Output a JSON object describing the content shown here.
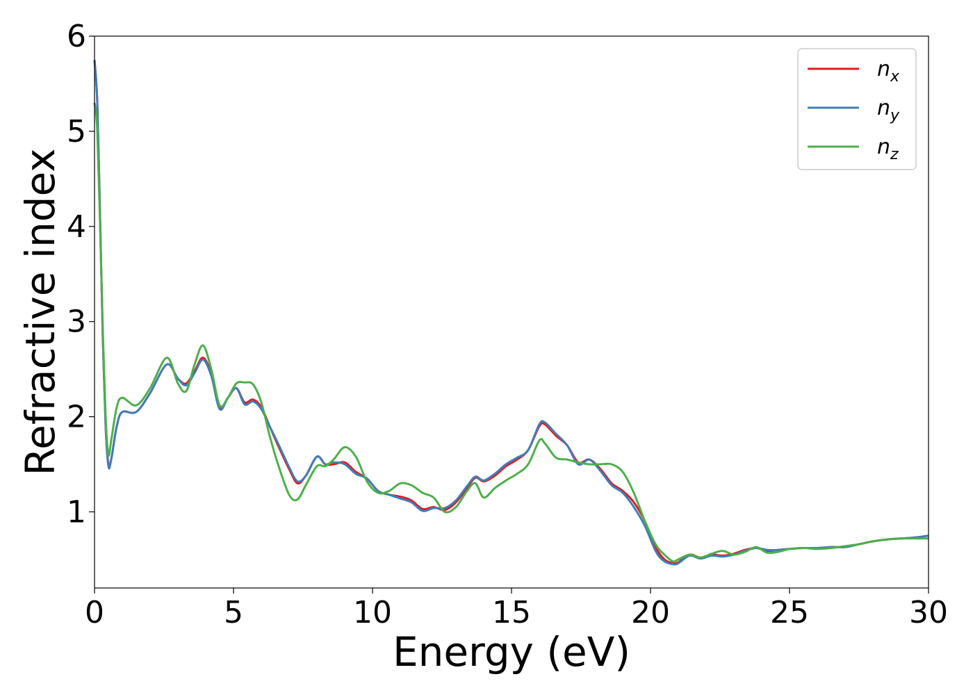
{
  "chart_data": {
    "type": "line",
    "title": "",
    "xlabel": "Energy (eV)",
    "ylabel": "Refractive index",
    "xlim": [
      0,
      30
    ],
    "ylim": [
      0.2,
      6.0
    ],
    "x_ticks": [
      "0",
      "5",
      "10",
      "15",
      "20",
      "25",
      "30"
    ],
    "y_ticks": [
      "1",
      "2",
      "3",
      "4",
      "5",
      "6"
    ],
    "grid": false,
    "legend_placement": "top-right",
    "series": [
      {
        "name": "n",
        "sub": "x",
        "color": "#e41a1c",
        "x": [
          0,
          0.1,
          0.2,
          0.3,
          0.4,
          0.5,
          0.6,
          0.8,
          1.0,
          1.5,
          2.0,
          2.6,
          3.0,
          3.3,
          3.6,
          3.9,
          4.2,
          4.5,
          4.8,
          5.1,
          5.4,
          5.7,
          6.0,
          6.3,
          6.6,
          7.0,
          7.3,
          7.6,
          8.0,
          8.3,
          8.6,
          9.0,
          9.4,
          9.8,
          10.2,
          10.6,
          11.0,
          11.4,
          11.8,
          12.2,
          12.6,
          13.0,
          13.4,
          13.7,
          14.0,
          14.4,
          14.8,
          15.2,
          15.6,
          16.0,
          16.2,
          16.6,
          17.0,
          17.4,
          17.8,
          18.2,
          18.6,
          19.0,
          19.4,
          19.8,
          20.2,
          20.5,
          20.8,
          21.0,
          21.4,
          21.8,
          22.2,
          22.6,
          23.0,
          23.4,
          23.8,
          24.2,
          24.6,
          25.0,
          25.5,
          26.0,
          26.5,
          27.0,
          27.5,
          28.0,
          28.5,
          29.0,
          29.5,
          30.0
        ],
        "y": [
          5.75,
          5.3,
          4.1,
          2.8,
          1.9,
          1.5,
          1.55,
          1.9,
          2.05,
          2.05,
          2.25,
          2.55,
          2.4,
          2.35,
          2.48,
          2.62,
          2.45,
          2.1,
          2.2,
          2.3,
          2.15,
          2.18,
          2.1,
          1.9,
          1.7,
          1.45,
          1.3,
          1.38,
          1.58,
          1.5,
          1.5,
          1.52,
          1.42,
          1.35,
          1.22,
          1.18,
          1.16,
          1.12,
          1.03,
          1.05,
          1.02,
          1.1,
          1.25,
          1.36,
          1.32,
          1.38,
          1.48,
          1.55,
          1.65,
          1.9,
          1.92,
          1.8,
          1.7,
          1.52,
          1.55,
          1.45,
          1.3,
          1.22,
          1.1,
          0.9,
          0.62,
          0.5,
          0.46,
          0.47,
          0.55,
          0.52,
          0.55,
          0.54,
          0.56,
          0.6,
          0.62,
          0.59,
          0.6,
          0.61,
          0.62,
          0.62,
          0.63,
          0.63,
          0.66,
          0.69,
          0.71,
          0.72,
          0.73,
          0.75
        ]
      },
      {
        "name": "n",
        "sub": "y",
        "color": "#3f7db8",
        "x": [
          0,
          0.1,
          0.2,
          0.3,
          0.4,
          0.5,
          0.6,
          0.8,
          1.0,
          1.5,
          2.0,
          2.6,
          3.0,
          3.3,
          3.6,
          3.9,
          4.2,
          4.5,
          4.8,
          5.1,
          5.4,
          5.7,
          6.0,
          6.3,
          6.6,
          7.0,
          7.3,
          7.6,
          8.0,
          8.3,
          8.6,
          9.0,
          9.4,
          9.8,
          10.2,
          10.6,
          11.0,
          11.4,
          11.8,
          12.2,
          12.6,
          13.0,
          13.4,
          13.7,
          14.0,
          14.4,
          14.8,
          15.2,
          15.6,
          16.0,
          16.2,
          16.6,
          17.0,
          17.4,
          17.8,
          18.2,
          18.6,
          19.0,
          19.4,
          19.8,
          20.2,
          20.5,
          20.8,
          21.0,
          21.4,
          21.8,
          22.2,
          22.6,
          23.0,
          23.4,
          23.8,
          24.2,
          24.6,
          25.0,
          25.5,
          26.0,
          26.5,
          27.0,
          27.5,
          28.0,
          28.5,
          29.0,
          29.5,
          30.0
        ],
        "y": [
          5.75,
          5.3,
          4.1,
          2.8,
          1.9,
          1.48,
          1.55,
          1.9,
          2.05,
          2.05,
          2.25,
          2.55,
          2.4,
          2.33,
          2.46,
          2.6,
          2.43,
          2.08,
          2.2,
          2.3,
          2.13,
          2.16,
          2.08,
          1.9,
          1.72,
          1.47,
          1.32,
          1.38,
          1.58,
          1.5,
          1.52,
          1.5,
          1.4,
          1.35,
          1.22,
          1.18,
          1.14,
          1.1,
          1.01,
          1.04,
          1.04,
          1.12,
          1.27,
          1.37,
          1.33,
          1.4,
          1.5,
          1.57,
          1.65,
          1.92,
          1.94,
          1.82,
          1.7,
          1.5,
          1.55,
          1.43,
          1.28,
          1.2,
          1.05,
          0.85,
          0.58,
          0.48,
          0.45,
          0.46,
          0.54,
          0.51,
          0.54,
          0.53,
          0.55,
          0.59,
          0.62,
          0.6,
          0.6,
          0.61,
          0.62,
          0.62,
          0.63,
          0.63,
          0.66,
          0.69,
          0.71,
          0.72,
          0.73,
          0.75
        ]
      },
      {
        "name": "n",
        "sub": "z",
        "color": "#4daf4a",
        "x": [
          0,
          0.1,
          0.2,
          0.3,
          0.4,
          0.5,
          0.6,
          0.8,
          1.0,
          1.5,
          2.0,
          2.6,
          3.0,
          3.3,
          3.6,
          3.9,
          4.2,
          4.5,
          4.8,
          5.1,
          5.4,
          5.7,
          6.0,
          6.3,
          6.6,
          7.0,
          7.3,
          7.6,
          8.0,
          8.3,
          8.6,
          9.0,
          9.4,
          9.8,
          10.2,
          10.6,
          11.0,
          11.4,
          11.8,
          12.2,
          12.6,
          13.0,
          13.4,
          13.7,
          14.0,
          14.4,
          14.8,
          15.2,
          15.6,
          16.0,
          16.2,
          16.6,
          17.0,
          17.4,
          17.8,
          18.2,
          18.6,
          19.0,
          19.4,
          19.8,
          20.2,
          20.5,
          20.8,
          21.0,
          21.4,
          21.8,
          22.2,
          22.6,
          23.0,
          23.4,
          23.8,
          24.2,
          24.6,
          25.0,
          25.5,
          26.0,
          26.5,
          27.0,
          27.5,
          28.0,
          28.5,
          29.0,
          29.5,
          30.0
        ],
        "y": [
          5.3,
          5.0,
          4.0,
          2.9,
          2.0,
          1.6,
          1.75,
          2.1,
          2.2,
          2.12,
          2.3,
          2.62,
          2.35,
          2.27,
          2.55,
          2.75,
          2.5,
          2.12,
          2.2,
          2.35,
          2.36,
          2.34,
          2.15,
          1.8,
          1.5,
          1.18,
          1.13,
          1.28,
          1.48,
          1.48,
          1.55,
          1.68,
          1.58,
          1.32,
          1.2,
          1.22,
          1.3,
          1.28,
          1.2,
          1.15,
          1.0,
          1.05,
          1.22,
          1.3,
          1.15,
          1.25,
          1.33,
          1.4,
          1.5,
          1.75,
          1.72,
          1.57,
          1.55,
          1.52,
          1.5,
          1.5,
          1.5,
          1.42,
          1.2,
          0.9,
          0.65,
          0.55,
          0.48,
          0.5,
          0.55,
          0.52,
          0.56,
          0.59,
          0.55,
          0.58,
          0.63,
          0.57,
          0.58,
          0.61,
          0.62,
          0.61,
          0.62,
          0.64,
          0.66,
          0.69,
          0.71,
          0.72,
          0.72,
          0.72
        ]
      }
    ]
  }
}
